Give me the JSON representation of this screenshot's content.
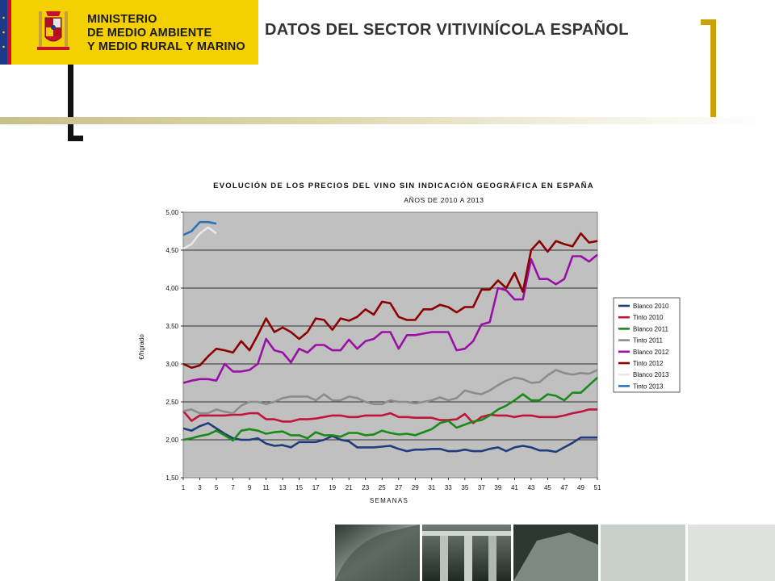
{
  "header": {
    "ministry_lines": [
      "MINISTERIO",
      "DE MEDIO AMBIENTE",
      "Y MEDIO RURAL Y MARINO"
    ],
    "slide_title": "DATOS DEL SECTOR VITIVINÍCOLA ESPAÑOL",
    "brand_color": "#f5d000",
    "accent_color": "#c9a20c"
  },
  "chart_data": {
    "type": "line",
    "title": "EVOLUCIÓN DE LOS PRECIOS DEL VINO SIN INDICACIÓN GEOGRÁFICA EN ESPAÑA",
    "subtitle": "AÑOS DE 2010 A 2013",
    "xlabel": "SEMANAS",
    "ylabel": "€/hgrado",
    "ylim": [
      1.5,
      5.0
    ],
    "yticks": [
      "1,50",
      "2,00",
      "2,50",
      "3,00",
      "3,50",
      "4,00",
      "4,50",
      "5,00"
    ],
    "xticks": [
      "1",
      "3",
      "5",
      "7",
      "9",
      "11",
      "13",
      "15",
      "17",
      "19",
      "21",
      "23",
      "25",
      "27",
      "29",
      "31",
      "33",
      "35",
      "37",
      "39",
      "41",
      "43",
      "45",
      "47",
      "49",
      "51"
    ],
    "plot_background": "#c0c0c0",
    "grid": "horizontal",
    "legend_position": "right",
    "series": [
      {
        "name": "Blanco 2010",
        "color": "#1f3d7a",
        "values": [
          2.15,
          2.12,
          2.18,
          2.22,
          2.15,
          2.08,
          2.02,
          2.0,
          2.0,
          2.02,
          1.95,
          1.92,
          1.93,
          1.9,
          1.97,
          1.97,
          1.97,
          2.0,
          2.05,
          2.0,
          1.98,
          1.9,
          1.9,
          1.9,
          1.91,
          1.92,
          1.88,
          1.85,
          1.87,
          1.87,
          1.88,
          1.88,
          1.85,
          1.85,
          1.87,
          1.85,
          1.85,
          1.88,
          1.9,
          1.85,
          1.9,
          1.92,
          1.9,
          1.86,
          1.86,
          1.84,
          1.9,
          1.96,
          2.03,
          2.03,
          2.03
        ]
      },
      {
        "name": "Tinto 2010",
        "color": "#c0143c",
        "values": [
          2.38,
          2.25,
          2.32,
          2.32,
          2.32,
          2.32,
          2.33,
          2.33,
          2.35,
          2.35,
          2.27,
          2.27,
          2.24,
          2.24,
          2.27,
          2.27,
          2.28,
          2.3,
          2.32,
          2.32,
          2.3,
          2.3,
          2.32,
          2.32,
          2.32,
          2.35,
          2.3,
          2.3,
          2.29,
          2.29,
          2.29,
          2.26,
          2.26,
          2.27,
          2.34,
          2.22,
          2.3,
          2.33,
          2.32,
          2.32,
          2.3,
          2.32,
          2.32,
          2.3,
          2.3,
          2.3,
          2.32,
          2.35,
          2.37,
          2.4,
          2.4
        ]
      },
      {
        "name": "Blanco 2011",
        "color": "#1a8a1a",
        "values": [
          2.0,
          2.02,
          2.05,
          2.07,
          2.12,
          2.06,
          1.99,
          2.12,
          2.14,
          2.12,
          2.08,
          2.1,
          2.11,
          2.06,
          2.06,
          2.02,
          2.1,
          2.06,
          2.06,
          2.04,
          2.09,
          2.09,
          2.06,
          2.07,
          2.12,
          2.09,
          2.07,
          2.08,
          2.06,
          2.1,
          2.14,
          2.22,
          2.25,
          2.16,
          2.2,
          2.24,
          2.26,
          2.32,
          2.4,
          2.45,
          2.52,
          2.6,
          2.52,
          2.52,
          2.6,
          2.58,
          2.52,
          2.62,
          2.62,
          2.72,
          2.82
        ]
      },
      {
        "name": "Tinto 2011",
        "color": "#8c8c8c",
        "values": [
          2.38,
          2.4,
          2.35,
          2.35,
          2.4,
          2.37,
          2.35,
          2.45,
          2.5,
          2.5,
          2.47,
          2.5,
          2.55,
          2.57,
          2.57,
          2.57,
          2.52,
          2.6,
          2.52,
          2.52,
          2.57,
          2.55,
          2.5,
          2.47,
          2.47,
          2.52,
          2.5,
          2.5,
          2.48,
          2.5,
          2.52,
          2.56,
          2.52,
          2.55,
          2.65,
          2.62,
          2.6,
          2.65,
          2.72,
          2.78,
          2.82,
          2.8,
          2.75,
          2.76,
          2.85,
          2.92,
          2.88,
          2.86,
          2.88,
          2.87,
          2.92
        ]
      },
      {
        "name": "Blanco 2012",
        "color": "#9a10a6",
        "values": [
          2.75,
          2.78,
          2.8,
          2.8,
          2.78,
          3.0,
          2.9,
          2.9,
          2.92,
          3.0,
          3.33,
          3.18,
          3.15,
          3.02,
          3.2,
          3.15,
          3.25,
          3.25,
          3.18,
          3.18,
          3.32,
          3.2,
          3.3,
          3.33,
          3.42,
          3.42,
          3.2,
          3.38,
          3.38,
          3.4,
          3.42,
          3.42,
          3.42,
          3.18,
          3.2,
          3.3,
          3.52,
          3.55,
          4.0,
          3.97,
          3.85,
          3.85,
          4.38,
          4.12,
          4.12,
          4.05,
          4.12,
          4.42,
          4.42,
          4.35,
          4.44
        ]
      },
      {
        "name": "Tinto 2012",
        "color": "#8b0000",
        "values": [
          3.0,
          2.95,
          2.98,
          3.1,
          3.2,
          3.18,
          3.15,
          3.3,
          3.18,
          3.38,
          3.6,
          3.42,
          3.48,
          3.42,
          3.33,
          3.42,
          3.6,
          3.58,
          3.45,
          3.6,
          3.57,
          3.62,
          3.72,
          3.65,
          3.82,
          3.8,
          3.62,
          3.58,
          3.58,
          3.72,
          3.72,
          3.78,
          3.75,
          3.68,
          3.75,
          3.75,
          3.98,
          3.98,
          4.1,
          4.0,
          4.2,
          3.95,
          4.5,
          4.62,
          4.48,
          4.62,
          4.58,
          4.55,
          4.72,
          4.6,
          4.62
        ]
      },
      {
        "name": "Blanco 2013",
        "color": "#e8e8e8",
        "values": [
          4.52,
          4.58,
          4.72,
          4.8,
          4.72
        ]
      },
      {
        "name": "Tinto 2013",
        "color": "#2a73b8",
        "values": [
          4.7,
          4.75,
          4.87,
          4.87,
          4.85
        ]
      }
    ]
  }
}
